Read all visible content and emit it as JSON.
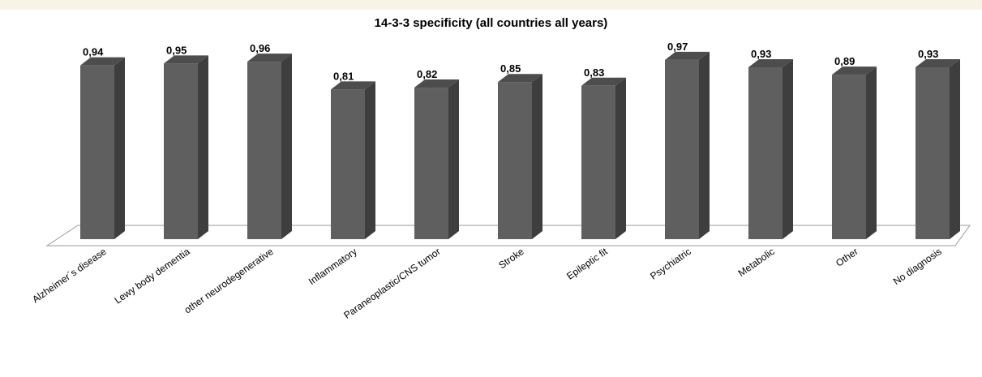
{
  "chart_data": {
    "type": "bar",
    "title": "14-3-3 specificity (all countries all years)",
    "categories": [
      "Alzheimer´s disease",
      "Lewy body dementia",
      "other neurodegenerative",
      "Inflammatory",
      "Paraneoplastic/CNS tumor",
      "Stroke",
      "Epileptic fit",
      "Psychiatric",
      "Metabolic",
      "Other",
      "No diagnosis"
    ],
    "values": [
      0.94,
      0.95,
      0.96,
      0.81,
      0.82,
      0.85,
      0.83,
      0.97,
      0.93,
      0.89,
      0.93
    ],
    "value_labels": [
      "0,94",
      "0,95",
      "0,96",
      "0,81",
      "0,82",
      "0,85",
      "0,83",
      "0,97",
      "0,93",
      "0,89",
      "0,93"
    ],
    "ylim": [
      0,
      1
    ],
    "grid": false,
    "legend": "none",
    "colors": {
      "bar_front": "#5f5f5f",
      "bar_side": "#3e3e3e",
      "bar_top": "#4d4d4d",
      "floor": "#ffffff"
    }
  }
}
